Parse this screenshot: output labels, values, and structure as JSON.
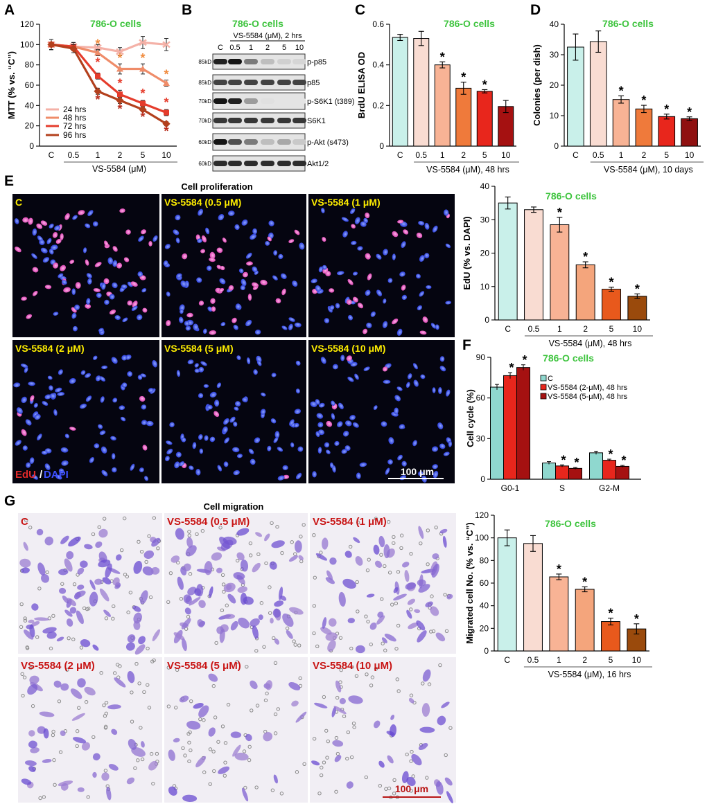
{
  "panels": {
    "A": {
      "letter": "A",
      "title": "786-O cells",
      "ylabel": "MTT (% vs. “C”)",
      "xlabel": "VS-5584 (μM)",
      "yticks": [
        "0",
        "20",
        "40",
        "60",
        "80",
        "100",
        "120"
      ]
    },
    "B": {
      "letter": "B",
      "title": "786-O cells",
      "header": "VS-5584 (μM), 2 hrs",
      "lanes": [
        "C",
        "0.5",
        "1",
        "2",
        "5",
        "10"
      ],
      "blots": [
        {
          "kd": "85kD",
          "label": "p-p85",
          "intensity": [
            0.9,
            0.95,
            0.5,
            0.2,
            0.12,
            0.1
          ]
        },
        {
          "kd": "85kD",
          "label": "p85",
          "intensity": [
            0.75,
            0.75,
            0.75,
            0.75,
            0.75,
            0.75
          ]
        },
        {
          "kd": "70kD",
          "label": "p-S6K1 (t389)",
          "intensity": [
            0.95,
            0.9,
            0.35,
            0.05,
            0.03,
            0.03
          ]
        },
        {
          "kd": "70kD",
          "label": "S6K1",
          "intensity": [
            0.8,
            0.8,
            0.8,
            0.8,
            0.8,
            0.8
          ]
        },
        {
          "kd": "60kD",
          "label": "p-Akt (s473)",
          "intensity": [
            0.95,
            0.7,
            0.5,
            0.2,
            0.3,
            0.15
          ]
        },
        {
          "kd": "60kD",
          "label": "Akt1/2",
          "intensity": [
            0.85,
            0.85,
            0.85,
            0.85,
            0.85,
            0.85
          ]
        }
      ]
    },
    "C": {
      "letter": "C",
      "title": "786-O cells",
      "ylabel": "BrdU ELISA OD",
      "xlabel": "VS-5584 (μM), 48 hrs",
      "yticks": [
        "0",
        "0.2",
        "0.4",
        "0.6"
      ]
    },
    "D": {
      "letter": "D",
      "title": "786-O cells",
      "ylabel": "Colonies (per dish)",
      "xlabel": "VS-5584 (μM), 10 days",
      "yticks": [
        "0",
        "10",
        "20",
        "30",
        "40"
      ]
    },
    "E": {
      "letter": "E",
      "micro_title": "Cell proliferation",
      "tiles": [
        "C",
        "VS-5584 (0.5 μM)",
        "VS-5584 (1 μM)",
        "VS-5584 (2 μM)",
        "VS-5584 (5 μM)",
        "VS-5584 (10 μM)"
      ],
      "stain_red": "EdU",
      "stain_sep": "/",
      "stain_blue": "DAPI",
      "scale": "100 μm",
      "title": "786-O cells",
      "ylabel": "EdU (% vs. DAPI)",
      "xlabel": "VS-5584 (μM), 48 hrs",
      "yticks": [
        "0",
        "10",
        "20",
        "30",
        "40"
      ]
    },
    "F": {
      "letter": "F",
      "title": "786-O cells",
      "ylabel": "Cell cycle (%)",
      "yticks": [
        "0",
        "30",
        "60",
        "90"
      ]
    },
    "G": {
      "letter": "G",
      "micro_title": "Cell migration",
      "tiles": [
        "C",
        "VS-5584 (0.5 μM)",
        "VS-5584 (1 μM)",
        "VS-5584 (2 μM)",
        "VS-5584 (5 μM)",
        "VS-5584 (10 μM)"
      ],
      "scale": "100 μm",
      "title": "786-O cells",
      "ylabel": "Migrated cell No. (% vs. “C”)",
      "xlabel": "VS-5584 (μM), 16 hrs",
      "yticks": [
        "0",
        "20",
        "40",
        "60",
        "80",
        "100",
        "120"
      ]
    }
  },
  "colors": {
    "title_green": "#3ec43e",
    "bars_6": [
      "#c9f0ea",
      "#f9dcd2",
      "#f8b395",
      "#ef7a3b",
      "#e8261c",
      "#a51111"
    ],
    "bars_6_alt": [
      "#c9f0ea",
      "#f9dcd2",
      "#f8b395",
      "#ef7a3b",
      "#e8261c",
      "#8f1010"
    ],
    "bars_6_brown": [
      "#c9f0ea",
      "#f9dcd2",
      "#f8b395",
      "#f4a57c",
      "#e8591c",
      "#9a4a0c"
    ],
    "line_24": "#f4b1a7",
    "line_48": "#ef8c69",
    "line_72": "#e53c2c",
    "line_96": "#b3401d",
    "cc_C": "#8fd8cf",
    "cc_2": "#e8261c",
    "cc_5": "#a51111"
  },
  "chart_data": [
    {
      "panel": "A",
      "type": "line",
      "title": "786-O cells",
      "xlabel": "VS-5584 (μM)",
      "ylabel": "MTT (% vs. “C”)",
      "categories": [
        "C",
        "0.5",
        "1",
        "2",
        "5",
        "10"
      ],
      "ylim": [
        0,
        120
      ],
      "legend_position": "bottom-left",
      "series": [
        {
          "name": "24 hrs",
          "values": [
            100,
            98,
            97,
            93,
            102,
            100
          ],
          "errors": [
            5,
            4,
            3,
            4,
            6,
            6
          ],
          "sig": [
            false,
            false,
            false,
            false,
            false,
            false
          ]
        },
        {
          "name": "48 hrs",
          "values": [
            100,
            98,
            92,
            76,
            76,
            62
          ],
          "errors": [
            5,
            4,
            3,
            5,
            5,
            3
          ],
          "sig": [
            false,
            false,
            true,
            true,
            true,
            true
          ]
        },
        {
          "name": "72 hrs",
          "values": [
            100,
            98,
            69,
            51,
            42,
            33
          ],
          "errors": [
            5,
            4,
            3,
            4,
            3,
            3
          ],
          "sig": [
            false,
            false,
            true,
            true,
            true,
            true
          ]
        },
        {
          "name": "96 hrs",
          "values": [
            100,
            96,
            54,
            45,
            36,
            22
          ],
          "errors": [
            5,
            4,
            3,
            3,
            2,
            2
          ],
          "sig": [
            false,
            false,
            true,
            true,
            true,
            true
          ]
        }
      ]
    },
    {
      "panel": "C",
      "type": "bar",
      "title": "786-O cells",
      "xlabel": "VS-5584 (μM), 48 hrs",
      "ylabel": "BrdU ELISA OD",
      "categories": [
        "C",
        "0.5",
        "1",
        "2",
        "5",
        "10"
      ],
      "values": [
        0.535,
        0.53,
        0.4,
        0.285,
        0.27,
        0.195
      ],
      "errors": [
        0.015,
        0.035,
        0.015,
        0.03,
        0.008,
        0.03
      ],
      "sig": [
        false,
        false,
        true,
        true,
        true,
        false
      ],
      "ylim": [
        0,
        0.6
      ]
    },
    {
      "panel": "D",
      "type": "bar",
      "title": "786-O cells",
      "xlabel": "VS-5584 (μM), 10 days",
      "ylabel": "Colonies (per dish)",
      "categories": [
        "C",
        "0.5",
        "1",
        "2",
        "5",
        "10"
      ],
      "values": [
        32.5,
        34.3,
        15.3,
        12.2,
        9.7,
        9.0
      ],
      "errors": [
        4.3,
        3.5,
        1.2,
        1.2,
        0.8,
        0.6
      ],
      "sig": [
        false,
        false,
        true,
        true,
        true,
        true
      ],
      "ylim": [
        0,
        40
      ]
    },
    {
      "panel": "E",
      "type": "bar",
      "title": "786-O cells",
      "xlabel": "VS-5584 (μM), 48 hrs",
      "ylabel": "EdU (% vs. DAPI)",
      "categories": [
        "C",
        "0.5",
        "1",
        "2",
        "5",
        "10"
      ],
      "values": [
        35.0,
        33.0,
        28.5,
        16.5,
        9.2,
        7.1
      ],
      "errors": [
        1.8,
        0.8,
        2.2,
        0.9,
        0.6,
        0.7
      ],
      "sig": [
        false,
        false,
        true,
        true,
        true,
        true
      ],
      "ylim": [
        0,
        40
      ]
    },
    {
      "panel": "F",
      "type": "bar",
      "title": "786-O cells",
      "ylabel": "Cell cycle (%)",
      "categories": [
        "G0-1",
        "S",
        "G2-M"
      ],
      "ylim": [
        0,
        90
      ],
      "legend_position": "top-right",
      "series": [
        {
          "name": "C",
          "values": [
            68.0,
            12.0,
            19.5
          ],
          "errors": [
            2.0,
            1.0,
            1.2
          ],
          "sig": [
            false,
            false,
            false
          ]
        },
        {
          "name": "VS-5584 (2-μM), 48 hrs",
          "values": [
            76.5,
            9.8,
            14.0
          ],
          "errors": [
            2.2,
            0.8,
            0.8
          ],
          "sig": [
            true,
            true,
            true
          ]
        },
        {
          "name": "VS-5584 (5-μM), 48 hrs",
          "values": [
            82.5,
            8.0,
            9.5
          ],
          "errors": [
            2.0,
            0.7,
            0.7
          ],
          "sig": [
            true,
            true,
            true
          ]
        }
      ]
    },
    {
      "panel": "G",
      "type": "bar",
      "title": "786-O cells",
      "xlabel": "VS-5584 (μM), 16 hrs",
      "ylabel": "Migrated cell No. (% vs. “C”)",
      "categories": [
        "C",
        "0.5",
        "1",
        "2",
        "5",
        "10"
      ],
      "values": [
        100,
        95,
        65.5,
        54.5,
        26,
        19.5
      ],
      "errors": [
        7,
        7,
        2.5,
        2.2,
        3,
        4.5
      ],
      "sig": [
        false,
        false,
        true,
        true,
        true,
        true
      ],
      "ylim": [
        0,
        120
      ]
    }
  ]
}
